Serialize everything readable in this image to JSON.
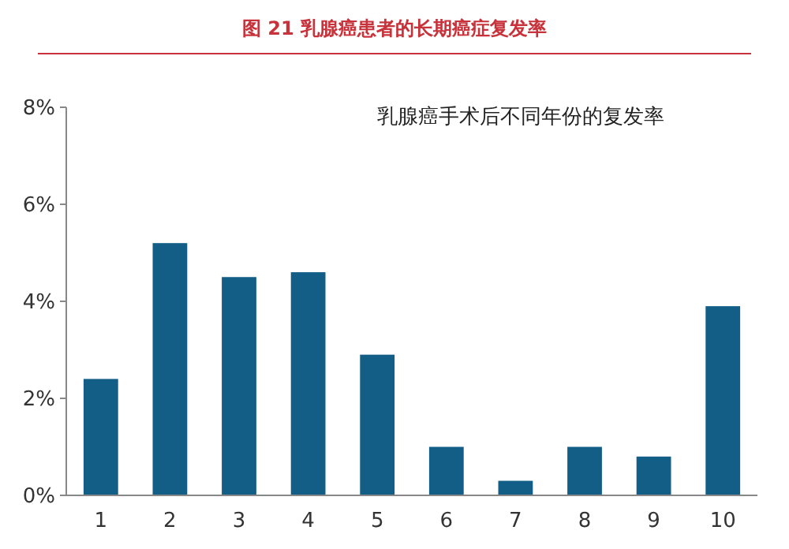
{
  "chart_data": {
    "type": "bar",
    "title": "图 21  乳腺癌患者的长期癌症复发率",
    "annotations": [
      "乳腺癌手术后不同年份的复发率"
    ],
    "categories": [
      "1",
      "2",
      "3",
      "4",
      "5",
      "6",
      "7",
      "8",
      "9",
      "10"
    ],
    "values": [
      2.4,
      5.2,
      4.5,
      4.6,
      2.9,
      1.0,
      0.3,
      1.0,
      0.8,
      3.9
    ],
    "color": "#135e87",
    "ylim": [
      0,
      8
    ],
    "yticks": [
      {
        "value": 0,
        "label": "0%"
      },
      {
        "value": 2,
        "label": "2%"
      },
      {
        "value": 4,
        "label": "4%"
      },
      {
        "value": 6,
        "label": "6%"
      },
      {
        "value": 8,
        "label": "8%"
      }
    ],
    "grid": false
  }
}
